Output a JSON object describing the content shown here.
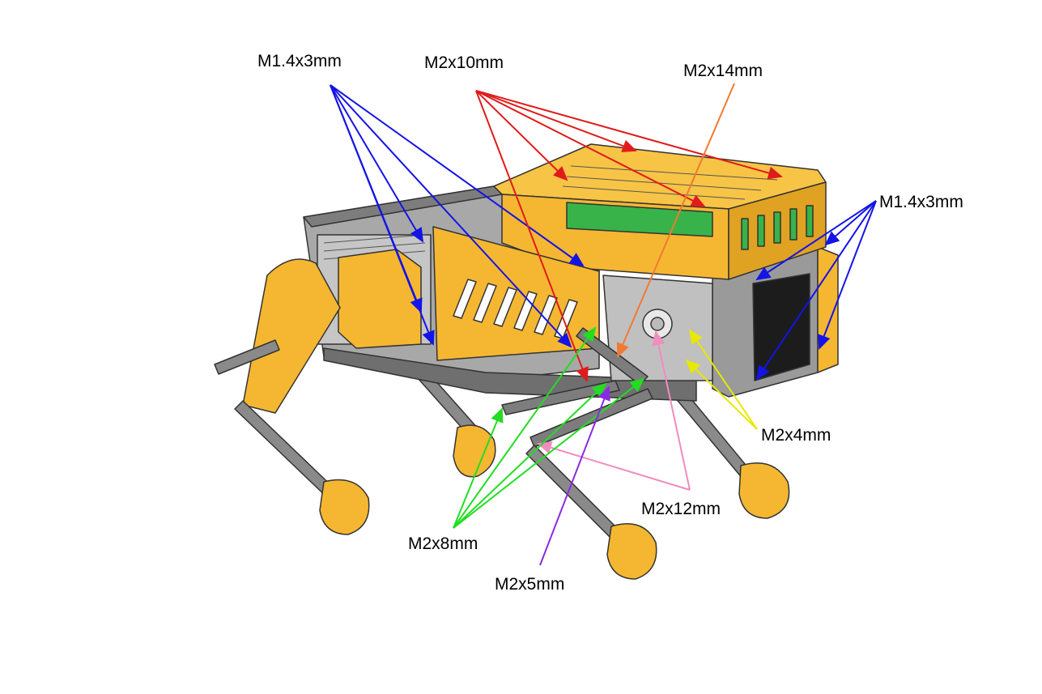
{
  "labels": {
    "m14_left": "M1.4x3mm",
    "m2x10": "M2x10mm",
    "m2x14": "M2x14mm",
    "m14_right": "M1.4x3mm",
    "m2x4": "M2x4mm",
    "m2x12": "M2x12mm",
    "m2x8": "M2x8mm",
    "m2x5": "M2x5mm"
  },
  "colors": {
    "body": "#f5b731",
    "body_dark": "#d99a1c",
    "frame": "#9a9a9a",
    "frame_dark": "#6f6f6f",
    "pcb": "#37b34a",
    "screen": "#1c1c1c",
    "blue_arrow": "#1414e6",
    "red_arrow": "#e01b1b",
    "orange_arrow": "#f07a32",
    "yellow_arrow": "#f0f000",
    "green_arrow": "#22dd22",
    "pink_arrow": "#f08cc0",
    "purple_arrow": "#8a2be2"
  }
}
